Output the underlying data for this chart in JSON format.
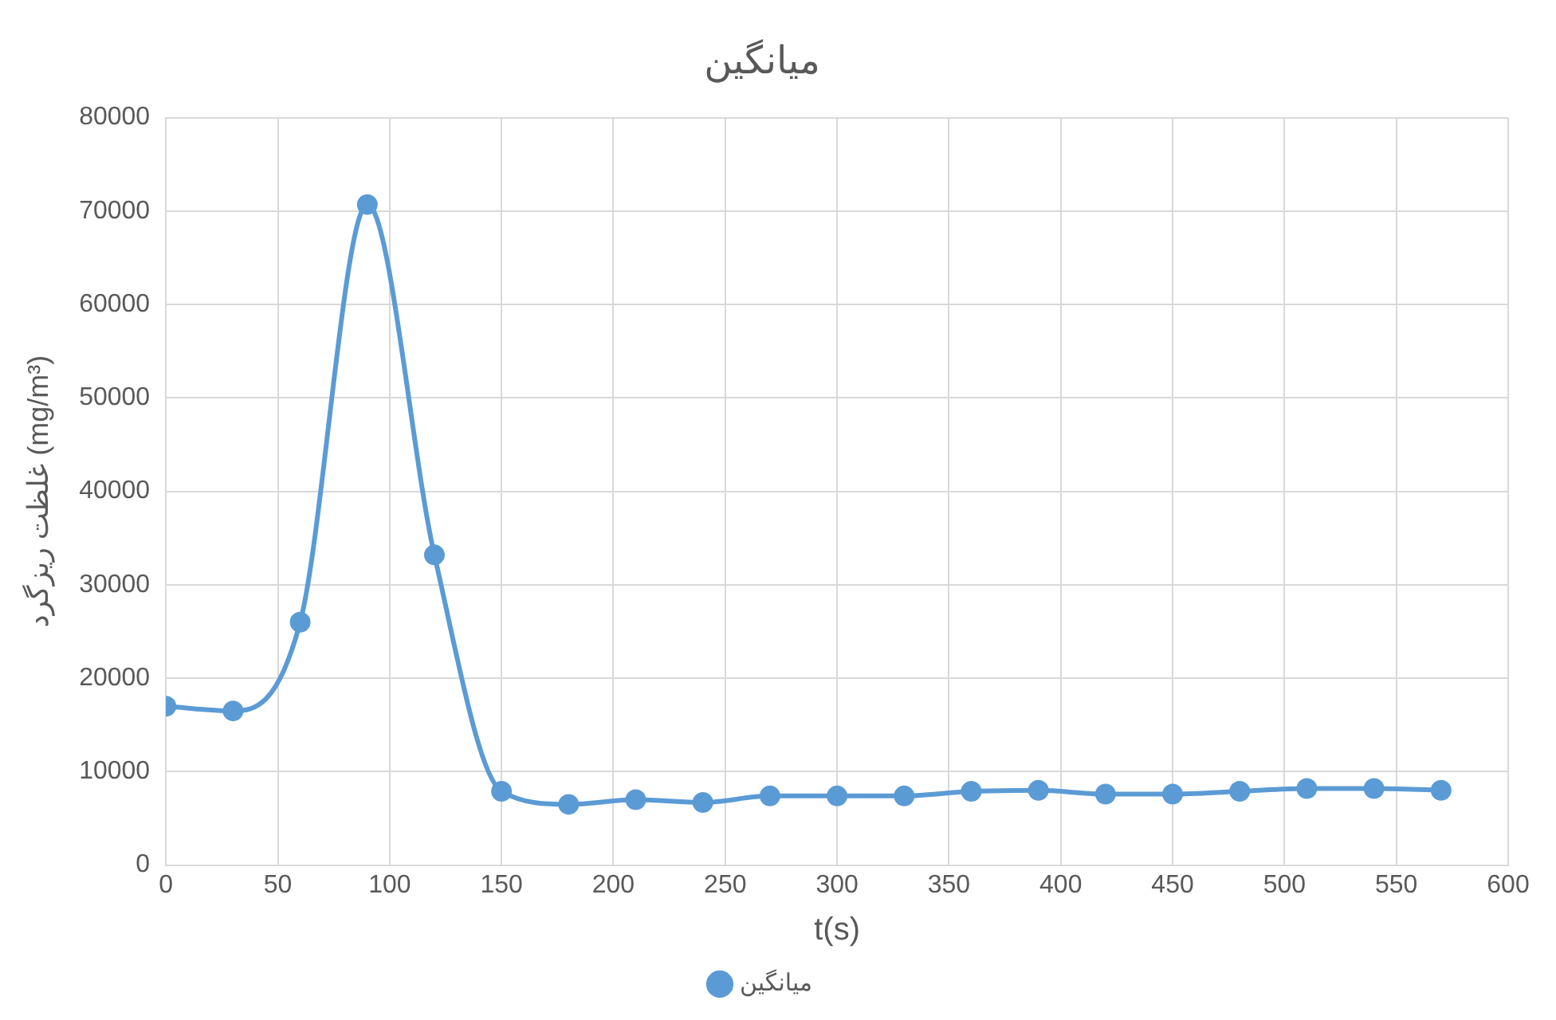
{
  "chart_data": {
    "type": "line",
    "title": "میانگین",
    "xlabel": "t(s)",
    "ylabel": "غلظت ریزگرد (mg/m³)",
    "x": [
      0,
      30,
      60,
      90,
      120,
      150,
      180,
      210,
      240,
      270,
      300,
      330,
      360,
      390,
      420,
      450,
      480,
      510,
      540,
      570
    ],
    "series": [
      {
        "name": "میانگین",
        "color": "#5b9bd5",
        "values": [
          17000,
          16500,
          26000,
          70700,
          33200,
          7900,
          6500,
          7000,
          6700,
          7400,
          7400,
          7400,
          7900,
          8000,
          7600,
          7600,
          7900,
          8200,
          8200,
          8000
        ]
      }
    ],
    "xlim": [
      0,
      600
    ],
    "xticks": [
      0,
      50,
      100,
      150,
      200,
      250,
      300,
      350,
      400,
      450,
      500,
      550,
      600
    ],
    "ylim": [
      0,
      80000
    ],
    "yticks": [
      0,
      10000,
      20000,
      30000,
      40000,
      50000,
      60000,
      70000,
      80000
    ],
    "grid": true,
    "legend": "bottom",
    "marker": "circle",
    "line_style": "solid"
  }
}
